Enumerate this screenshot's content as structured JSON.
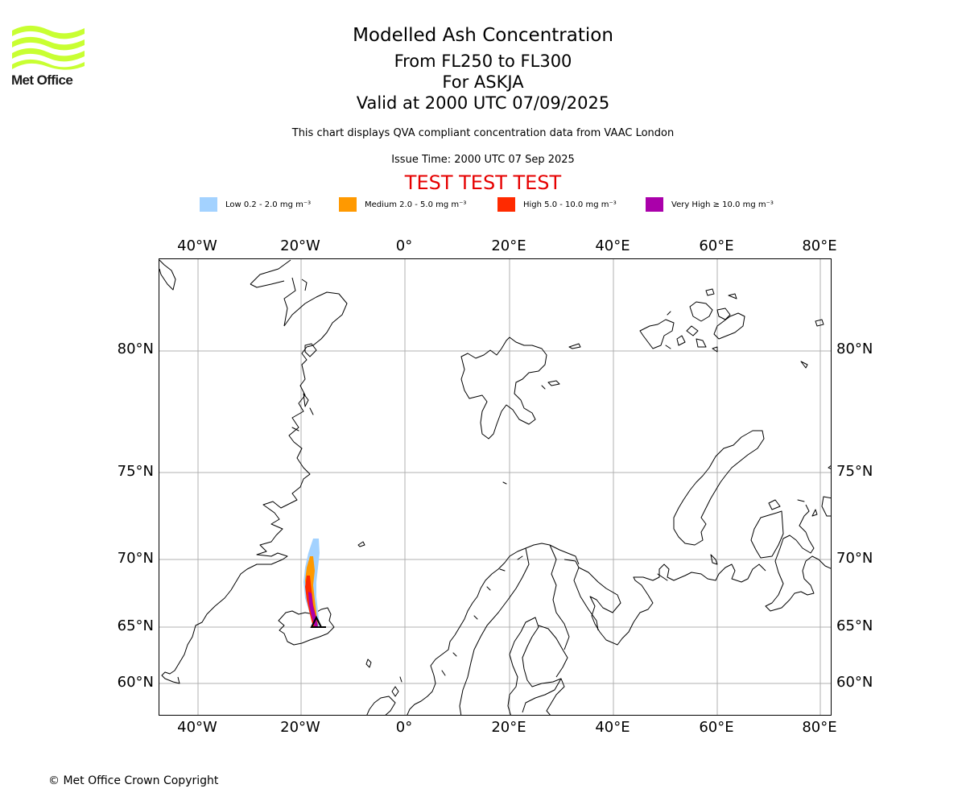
{
  "logo": {
    "text": "Met Office",
    "color": "#c8ff32"
  },
  "title": {
    "line1": "Modelled Ash Concentration",
    "line2": "From FL250 to FL300",
    "line3": "For ASKJA",
    "line4": "Valid at 2000 UTC 07/09/2025"
  },
  "subtitle": "This chart displays QVA compliant concentration data from VAAC London",
  "issue_time": "Issue Time: 2000 UTC 07 Sep 2025",
  "test_banner": "TEST TEST TEST",
  "legend": [
    {
      "label": "Low 0.2 - 2.0 mg m⁻³",
      "color": "#a3d2ff"
    },
    {
      "label": "Medium 2.0 - 5.0 mg m⁻³",
      "color": "#ff9900"
    },
    {
      "label": "High 5.0 - 10.0 mg m⁻³",
      "color": "#ff2a00"
    },
    {
      "label": "Very High ≥ 10.0 mg m⁻³",
      "color": "#aa00aa"
    }
  ],
  "map": {
    "lon_ticks": [
      "40°W",
      "20°W",
      "0°",
      "20°E",
      "40°E",
      "60°E",
      "80°E"
    ],
    "lat_ticks": [
      "80°N",
      "75°N",
      "70°N",
      "65°N",
      "60°N"
    ],
    "volcano": "ASKJA",
    "gridline_color": "#b0b0b0"
  },
  "copyright": "© Met Office Crown Copyright"
}
